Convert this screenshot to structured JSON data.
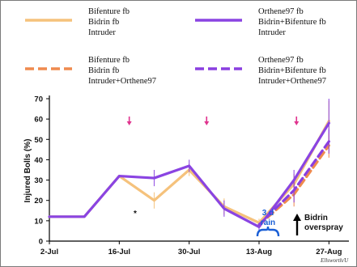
{
  "colors": {
    "orange": "#f5c27c",
    "orange_dash": "#ef8a4e",
    "purple": "#8a44e2",
    "purple_dash": "#8a3fe0",
    "arrow_pink": "#e0338e",
    "rain_blue": "#1a5fd6",
    "axis": "#000000"
  },
  "legend": [
    {
      "lines": [
        "Bifenture fb",
        "Bidrin fb",
        "Intruder"
      ],
      "style": "solid",
      "color": "#f5c27c"
    },
    {
      "lines": [
        "Orthene97 fb",
        "Bidrin+Bifenture fb",
        "Intruder"
      ],
      "style": "solid",
      "color": "#8a44e2"
    },
    {
      "lines": [
        "Bifenture fb",
        "Bidrin fb",
        "Intruder+Orthene97"
      ],
      "style": "dashed",
      "color": "#ef8a4e"
    },
    {
      "lines": [
        "Orthene97 fb",
        "Bidrin+Bifenture fb",
        "Intruder+Orthene97"
      ],
      "style": "dashed",
      "color": "#8a3fe0"
    }
  ],
  "annotations": {
    "asterisk": "*",
    "rain_lines": [
      "3 d",
      "rain"
    ],
    "overspray_lines": [
      "Bidrin",
      "overspray"
    ],
    "credit": "Ellsworth/U"
  },
  "chart_data": {
    "type": "line",
    "ylabel": "Injured Bolls (%)",
    "xlabel": "",
    "ylim": [
      0,
      70
    ],
    "yticks": [
      0,
      10,
      20,
      30,
      40,
      50,
      60,
      70
    ],
    "xlim": [
      0,
      60
    ],
    "xticks": [
      {
        "value": 0,
        "label": "2-Jul"
      },
      {
        "value": 14,
        "label": "16-Jul"
      },
      {
        "value": 28,
        "label": "30-Jul"
      },
      {
        "value": 42,
        "label": "13-Aug"
      },
      {
        "value": 56,
        "label": "27-Aug"
      }
    ],
    "spray_arrows_x": [
      16,
      31.5,
      49.5
    ],
    "grid": false,
    "series": [
      {
        "name": "Bifenture fb Bidrin fb Intruder",
        "style": "solid",
        "color": "#f5c27c",
        "x": [
          0,
          7,
          14,
          21,
          28,
          35,
          42,
          49,
          56
        ],
        "y": [
          12,
          12,
          32,
          20,
          35,
          17,
          9,
          28,
          59
        ],
        "err": [
          0,
          0,
          0,
          4,
          3,
          4,
          2,
          5,
          10
        ]
      },
      {
        "name": "Orthene97 fb Bidrin+Bifenture fb Intruder",
        "style": "solid",
        "color": "#8a44e2",
        "x": [
          0,
          7,
          14,
          21,
          28,
          35,
          42,
          49,
          56
        ],
        "y": [
          12,
          12,
          32,
          31,
          37,
          16,
          7,
          30,
          58
        ],
        "err": [
          0,
          0,
          0,
          4,
          3,
          4,
          2,
          5,
          12
        ]
      },
      {
        "name": "Bifenture fb Bidrin fb Intruder+Orthene97",
        "style": "dashed",
        "color": "#ef8a4e",
        "x": [
          42,
          49,
          56
        ],
        "y": [
          8,
          23,
          47
        ],
        "err": [
          0,
          6,
          6
        ]
      },
      {
        "name": "Orthene97 fb Bidrin+Bifenture fb Intruder+Orthene97",
        "style": "dashed",
        "color": "#8a3fe0",
        "x": [
          42,
          49,
          56
        ],
        "y": [
          8,
          25,
          49
        ],
        "err": [
          0,
          6,
          6
        ]
      }
    ]
  }
}
